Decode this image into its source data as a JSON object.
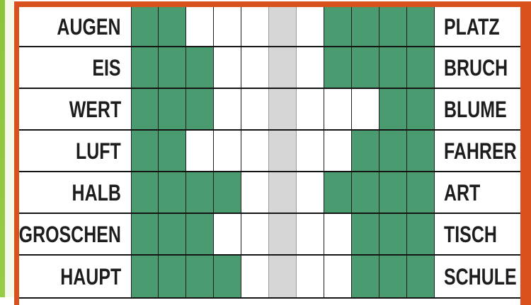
{
  "puzzle": {
    "left_words": [
      "AUGEN",
      "EIS",
      "WERT",
      "LUFT",
      "HALB",
      "GROSCHEN",
      "HAUPT"
    ],
    "right_words": [
      "PLATZ",
      "BRUCH",
      "BLUME",
      "FAHRER",
      "ART",
      "TISCH",
      "SCHULE"
    ],
    "grid": {
      "columns": 11,
      "solution_column_index": 5,
      "rows": [
        [
          "green",
          "green",
          "white",
          "white",
          "white",
          "gray",
          "white",
          "green",
          "green",
          "green",
          "green"
        ],
        [
          "green",
          "green",
          "green",
          "white",
          "white",
          "gray",
          "white",
          "green",
          "green",
          "green",
          "green"
        ],
        [
          "green",
          "green",
          "green",
          "white",
          "white",
          "gray",
          "white",
          "white",
          "white",
          "green",
          "green"
        ],
        [
          "green",
          "green",
          "white",
          "white",
          "white",
          "gray",
          "white",
          "white",
          "green",
          "green",
          "green"
        ],
        [
          "green",
          "green",
          "green",
          "green",
          "white",
          "gray",
          "white",
          "green",
          "green",
          "green",
          "green"
        ],
        [
          "green",
          "green",
          "green",
          "white",
          "white",
          "gray",
          "white",
          "white",
          "green",
          "green",
          "green"
        ],
        [
          "green",
          "green",
          "green",
          "green",
          "white",
          "gray",
          "white",
          "white",
          "green",
          "green",
          "green"
        ]
      ]
    },
    "colors": {
      "cell_green": "#4a9c70",
      "cell_gray": "#d6d6d6",
      "frame_orange": "#d9521d",
      "edge_strip_green": "#8ec43e",
      "edge_strip_pale": "#f4f9ea",
      "grid_line": "#1e1e1e",
      "text": "#1d1d1d"
    }
  }
}
